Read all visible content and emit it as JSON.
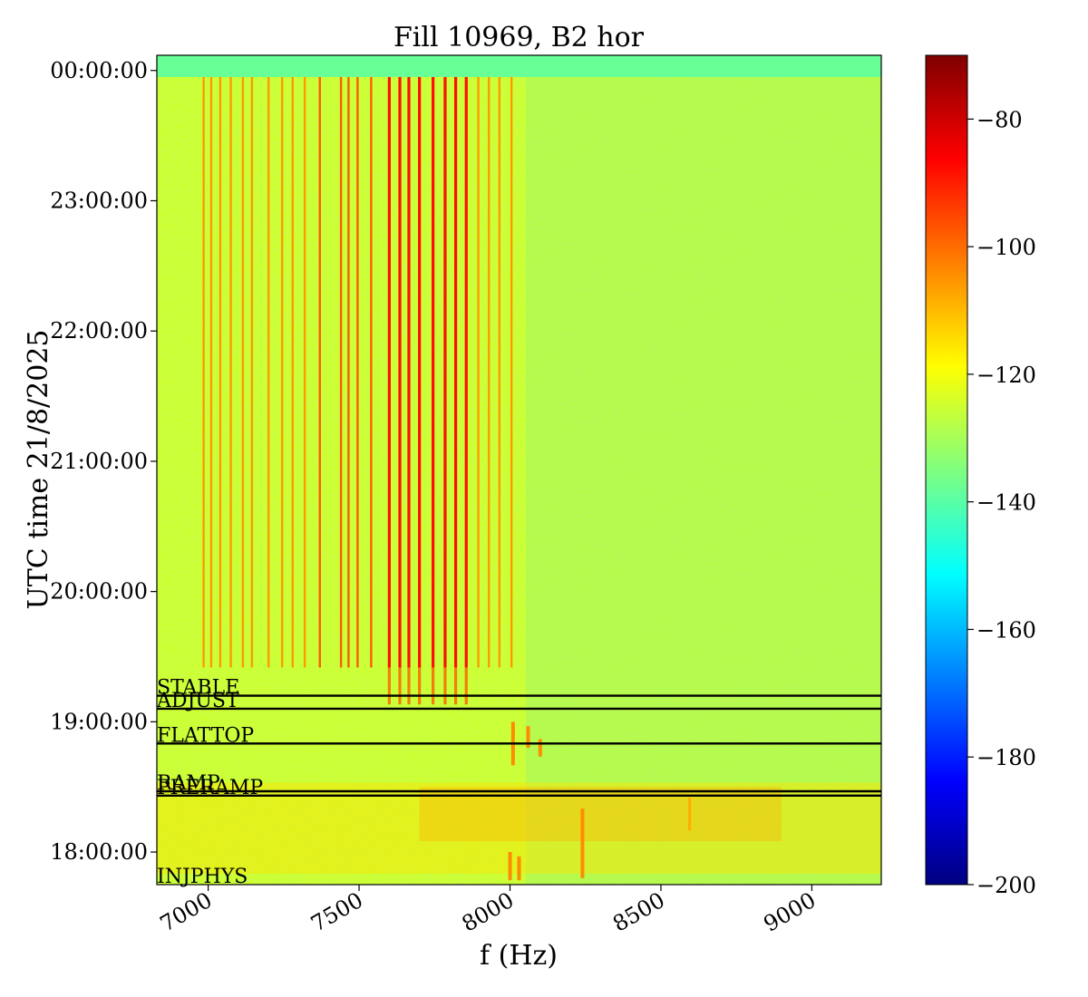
{
  "chart_data": {
    "type": "heatmap",
    "title": "Fill 10969, B2 hor",
    "xlabel": "f (Hz)",
    "ylabel": "UTC time 21/8/2025",
    "xlim": [
      6830,
      9230
    ],
    "x_ticks": [
      7000,
      7500,
      8000,
      8500,
      9000
    ],
    "x_tick_labels": [
      "7000",
      "7500",
      "8000",
      "8500",
      "9000"
    ],
    "ylim": [
      "17:45:00",
      "00:07:00"
    ],
    "y_ticks": [
      "18:00:00",
      "19:00:00",
      "20:00:00",
      "21:00:00",
      "22:00:00",
      "23:00:00",
      "00:00:00"
    ],
    "y_tick_labels": [
      "18:00:00",
      "19:00:00",
      "20:00:00",
      "21:00:00",
      "22:00:00",
      "23:00:00",
      "00:00:00"
    ],
    "colorbar": {
      "colormap": "jet",
      "range": [
        -200,
        -70
      ],
      "ticks": [
        -200,
        -180,
        -160,
        -140,
        -120,
        -100,
        -80
      ],
      "tick_labels": [
        "−200",
        "−180",
        "−160",
        "−140",
        "−120",
        "−100",
        "−80"
      ]
    },
    "background_level_dB": -125,
    "beam_modes": [
      {
        "label": "STABLE",
        "time": "19:12:00"
      },
      {
        "label": "ADJUST",
        "time": "19:06:00"
      },
      {
        "label": "FLATTOP",
        "time": "18:50:00"
      },
      {
        "label": "RAMP",
        "time": "18:28:00"
      },
      {
        "label": "PRERAMP",
        "time": "18:26:00"
      },
      {
        "label": "INJPHYS",
        "time": "17:45:00"
      }
    ],
    "harmonic_lines_hz": [
      6985,
      7010,
      7040,
      7075,
      7115,
      7145,
      7200,
      7245,
      7280,
      7320,
      7370,
      7440,
      7465,
      7495,
      7540,
      7600,
      7635,
      7665,
      7700,
      7745,
      7785,
      7820,
      7855,
      7895,
      7930,
      7965,
      8005
    ]
  }
}
